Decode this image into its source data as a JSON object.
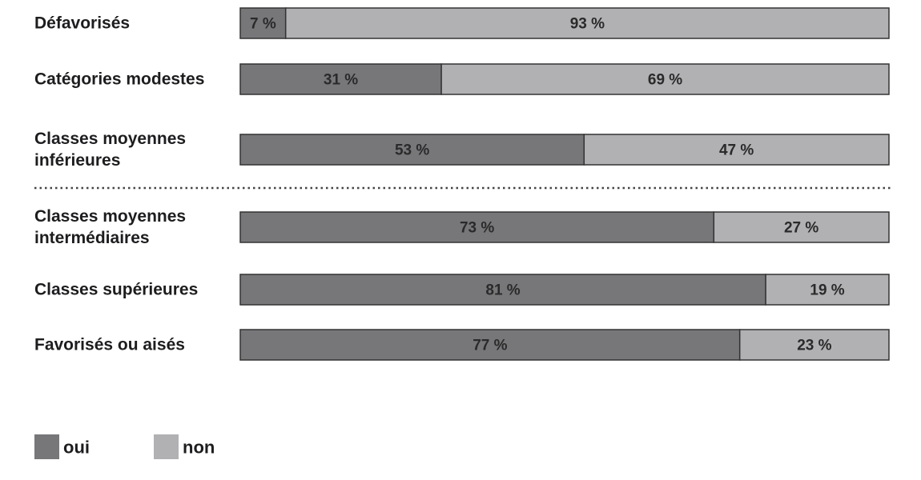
{
  "chart_data": {
    "type": "stacked-bar-100",
    "categories": [
      "Défavorisés",
      "Catégories modestes",
      "Classes moyennes inférieures",
      "Classes moyennes intermédiaires",
      "Classes supérieures",
      "Favorisés ou aisés"
    ],
    "series": [
      {
        "name": "oui",
        "color": "#77777a",
        "values": [
          7,
          31,
          53,
          73,
          81,
          77
        ],
        "value_labels": [
          "7 %",
          "31 %",
          "53 %",
          "73 %",
          "81 %",
          "77 %"
        ]
      },
      {
        "name": "non",
        "color": "#b1b1b4",
        "values": [
          93,
          69,
          47,
          27,
          19,
          23
        ],
        "value_labels": [
          "93 %",
          "69 %",
          "47 %",
          "27 %",
          "19 %",
          "23 %"
        ]
      }
    ]
  }
}
